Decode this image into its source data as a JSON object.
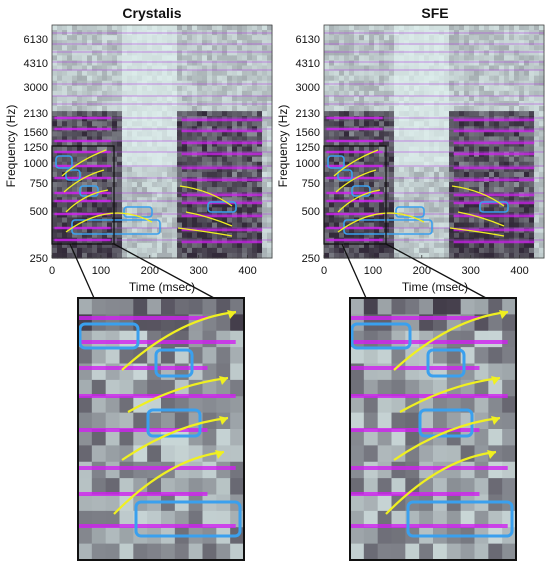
{
  "chart_data": [
    {
      "type": "heatmap",
      "title": "Crystalis",
      "xlabel": "Time (msec)",
      "ylabel": "Frequency (Hz)",
      "xlim": [
        0,
        450
      ],
      "x_ticks": [
        0,
        100,
        200,
        300,
        400
      ],
      "y_ticks": [
        250,
        500,
        750,
        1000,
        1250,
        1560,
        2130,
        3000,
        4310,
        6130
      ],
      "grid": false
    },
    {
      "type": "heatmap",
      "title": "SFE",
      "xlabel": "Time (msec)",
      "ylabel": "Frequency (Hz)",
      "xlim": [
        0,
        450
      ],
      "x_ticks": [
        0,
        100,
        200,
        300,
        400
      ],
      "y_ticks": [
        250,
        500,
        750,
        1000,
        1250,
        1560,
        2130,
        3000,
        4310,
        6130
      ],
      "grid": false
    }
  ],
  "colors": {
    "background": "#ffffff",
    "band": "#b040e0",
    "band_strong": "#d020f0",
    "pale": "#dff0ee",
    "dark": "#2a2030",
    "arrow": "#f0f020",
    "box": "#3aa0ee"
  }
}
